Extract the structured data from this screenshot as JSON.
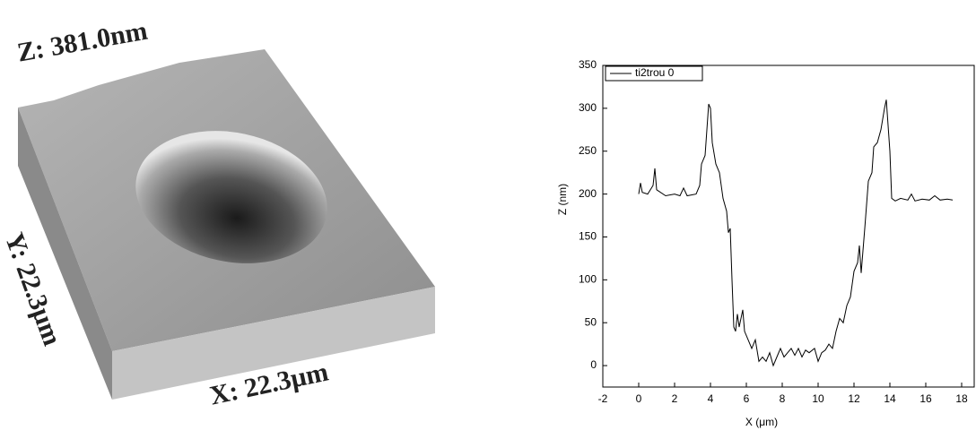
{
  "afm_image": {
    "z_label": "Z: 381.0nm",
    "y_label": "Y: 22.3µm",
    "x_label": "X: 22.3µm"
  },
  "chart_data": {
    "type": "line",
    "xlabel": "X (μm)",
    "ylabel": "Z (nm)",
    "xlim": [
      -2,
      18.7
    ],
    "xticks": [
      -2,
      0,
      2,
      4,
      6,
      8,
      10,
      12,
      14,
      16,
      18
    ],
    "ylim": [
      -25,
      350
    ],
    "yticks": [
      0,
      50,
      100,
      150,
      200,
      250,
      300,
      350
    ],
    "legend": "top-left",
    "x": [
      0,
      0.1,
      0.2,
      0.5,
      0.8,
      0.9,
      1.0,
      1.5,
      2.0,
      2.3,
      2.5,
      2.7,
      3.2,
      3.4,
      3.5,
      3.7,
      3.9,
      4.0,
      4.1,
      4.3,
      4.5,
      4.7,
      4.9,
      5.0,
      5.1,
      5.2,
      5.3,
      5.4,
      5.5,
      5.6,
      5.8,
      5.9,
      6.1,
      6.3,
      6.5,
      6.7,
      6.9,
      7.1,
      7.3,
      7.5,
      7.7,
      7.9,
      8.1,
      8.3,
      8.5,
      8.7,
      8.9,
      9.1,
      9.3,
      9.5,
      9.8,
      10.0,
      10.2,
      10.4,
      10.6,
      10.8,
      11.0,
      11.2,
      11.4,
      11.6,
      11.8,
      12.0,
      12.2,
      12.3,
      12.4,
      12.6,
      12.8,
      13.0,
      13.1,
      13.3,
      13.5,
      13.7,
      13.8,
      14.0,
      14.1,
      14.3,
      14.6,
      15.0,
      15.2,
      15.4,
      15.8,
      16.2,
      16.5,
      16.8,
      17.2,
      17.5
    ],
    "series": [
      {
        "name": "ti2trou 0",
        "color": "#000000",
        "values": [
          200,
          213,
          202,
          200,
          210,
          230,
          205,
          198,
          200,
          198,
          207,
          198,
          200,
          210,
          235,
          245,
          305,
          300,
          260,
          235,
          225,
          195,
          180,
          155,
          160,
          100,
          45,
          40,
          60,
          45,
          65,
          40,
          30,
          20,
          30,
          5,
          10,
          5,
          15,
          0,
          10,
          20,
          10,
          15,
          20,
          12,
          20,
          10,
          18,
          15,
          20,
          5,
          15,
          18,
          25,
          20,
          40,
          55,
          50,
          70,
          80,
          110,
          120,
          140,
          108,
          160,
          215,
          225,
          255,
          260,
          275,
          300,
          310,
          250,
          195,
          192,
          195,
          193,
          200,
          192,
          194,
          193,
          198,
          193,
          194,
          193
        ]
      }
    ]
  }
}
